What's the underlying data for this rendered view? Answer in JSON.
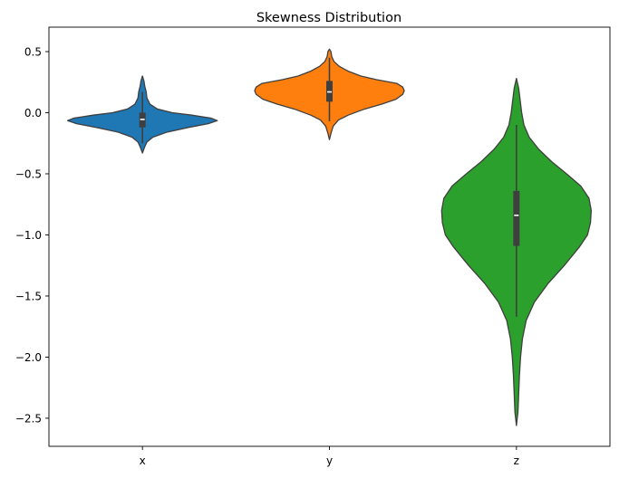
{
  "chart_data": {
    "type": "violin",
    "title": "Skewness Distribution",
    "xlabel": "",
    "ylabel": "",
    "categories": [
      "x",
      "y",
      "z"
    ],
    "ylim": [
      -2.73,
      0.7
    ],
    "yticks": [
      0.5,
      0.0,
      -0.5,
      -1.0,
      -1.5,
      -2.0,
      -2.5
    ],
    "ytick_labels": [
      "0.5",
      "0.0",
      "−0.5",
      "−1.0",
      "−1.5",
      "−2.0",
      "−2.5"
    ],
    "grid": false,
    "series": [
      {
        "category": "x",
        "color": "#1f77b4",
        "min": -0.33,
        "q1": -0.12,
        "median": -0.055,
        "q3": 0.0,
        "max": 0.3,
        "whisker_low": -0.25,
        "whisker_high": 0.17,
        "density": [
          [
            -0.33,
            0.0
          ],
          [
            -0.28,
            0.03
          ],
          [
            -0.24,
            0.06
          ],
          [
            -0.2,
            0.14
          ],
          [
            -0.16,
            0.32
          ],
          [
            -0.12,
            0.62
          ],
          [
            -0.09,
            0.88
          ],
          [
            -0.065,
            1.0
          ],
          [
            -0.045,
            0.92
          ],
          [
            -0.02,
            0.66
          ],
          [
            0.0,
            0.4
          ],
          [
            0.03,
            0.2
          ],
          [
            0.07,
            0.1
          ],
          [
            0.12,
            0.06
          ],
          [
            0.17,
            0.05
          ],
          [
            0.22,
            0.03
          ],
          [
            0.26,
            0.02
          ],
          [
            0.3,
            0.0
          ]
        ]
      },
      {
        "category": "y",
        "color": "#ff7f0e",
        "min": -0.22,
        "q1": 0.09,
        "median": 0.17,
        "q3": 0.26,
        "max": 0.52,
        "whisker_low": -0.07,
        "whisker_high": 0.45,
        "density": [
          [
            -0.22,
            0.0
          ],
          [
            -0.17,
            0.02
          ],
          [
            -0.11,
            0.05
          ],
          [
            -0.06,
            0.12
          ],
          [
            -0.02,
            0.25
          ],
          [
            0.03,
            0.47
          ],
          [
            0.07,
            0.7
          ],
          [
            0.11,
            0.89
          ],
          [
            0.15,
            0.98
          ],
          [
            0.18,
            1.0
          ],
          [
            0.21,
            0.98
          ],
          [
            0.24,
            0.9
          ],
          [
            0.27,
            0.63
          ],
          [
            0.3,
            0.42
          ],
          [
            0.34,
            0.25
          ],
          [
            0.38,
            0.13
          ],
          [
            0.42,
            0.06
          ],
          [
            0.46,
            0.03
          ],
          [
            0.5,
            0.02
          ],
          [
            0.52,
            0.0
          ]
        ]
      },
      {
        "category": "z",
        "color": "#2ca02c",
        "min": -2.56,
        "q1": -1.09,
        "median": -0.84,
        "q3": -0.64,
        "max": 0.28,
        "whisker_low": -1.67,
        "whisker_high": -0.1,
        "density": [
          [
            -2.56,
            0.0
          ],
          [
            -2.45,
            0.02
          ],
          [
            -2.3,
            0.03
          ],
          [
            -2.15,
            0.04
          ],
          [
            -2.0,
            0.055
          ],
          [
            -1.85,
            0.08
          ],
          [
            -1.7,
            0.13
          ],
          [
            -1.55,
            0.24
          ],
          [
            -1.4,
            0.42
          ],
          [
            -1.25,
            0.64
          ],
          [
            -1.1,
            0.84
          ],
          [
            -1.0,
            0.95
          ],
          [
            -0.9,
            0.99
          ],
          [
            -0.8,
            1.0
          ],
          [
            -0.7,
            0.97
          ],
          [
            -0.6,
            0.86
          ],
          [
            -0.5,
            0.67
          ],
          [
            -0.4,
            0.47
          ],
          [
            -0.3,
            0.3
          ],
          [
            -0.2,
            0.17
          ],
          [
            -0.1,
            0.1
          ],
          [
            0.0,
            0.07
          ],
          [
            0.1,
            0.05
          ],
          [
            0.2,
            0.03
          ],
          [
            0.28,
            0.0
          ]
        ]
      }
    ]
  }
}
